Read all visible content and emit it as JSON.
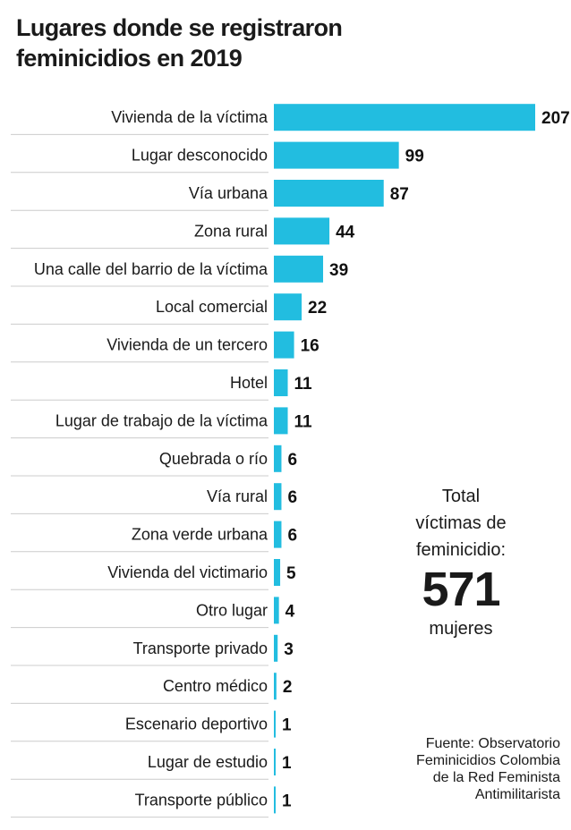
{
  "title": {
    "line1": "Lugares donde se registraron",
    "line2": "feminicidios en 2019"
  },
  "colors": {
    "bar": "#22bde0",
    "separator": "#cccccc"
  },
  "chart_data": {
    "type": "bar",
    "orientation": "horizontal",
    "title": "Lugares donde se registraron feminicidios en 2019",
    "categories": [
      "Vivienda de la víctima",
      "Lugar desconocido",
      "Vía urbana",
      "Zona rural",
      "Una calle del barrio de la víctima",
      "Local comercial",
      "Vivienda de un tercero",
      "Hotel",
      "Lugar de trabajo de la víctima",
      "Quebrada o río",
      "Vía rural",
      "Zona verde urbana",
      "Vivienda del victimario",
      "Otro lugar",
      "Transporte privado",
      "Centro médico",
      "Escenario deportivo",
      "Lugar de estudio",
      "Transporte público"
    ],
    "values": [
      207,
      99,
      87,
      44,
      39,
      22,
      16,
      11,
      11,
      6,
      6,
      6,
      5,
      4,
      3,
      2,
      1,
      1,
      1
    ],
    "grid": false,
    "legend": "none"
  },
  "total": {
    "line1": "Total",
    "line2": "víctimas de",
    "line3": "feminicidio:",
    "number": "571",
    "unit": "mujeres"
  },
  "source": {
    "line1": "Fuente: Observatorio",
    "line2": "Feminicidios Colombia",
    "line3": "de la Red Feminista",
    "line4": "Antimilitarista"
  }
}
